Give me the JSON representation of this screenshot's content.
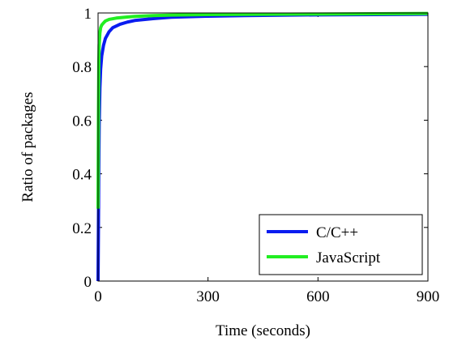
{
  "chart_data": {
    "type": "line",
    "title": "",
    "xlabel": "Time (seconds)",
    "ylabel": "Ratio of packages",
    "xlim": [
      0,
      900
    ],
    "ylim": [
      0,
      1
    ],
    "x_ticks": [
      0,
      300,
      600,
      900
    ],
    "y_ticks": [
      0,
      0.2,
      0.4,
      0.6,
      0.8,
      1
    ],
    "x_tick_labels": [
      "0",
      "300",
      "600",
      "900"
    ],
    "y_tick_labels": [
      "0",
      "0.2",
      "0.4",
      "0.6",
      "0.8",
      "1"
    ],
    "grid": false,
    "legend_position": "bottom-right",
    "series": [
      {
        "name": "C/C++",
        "color": "#0a1cf0",
        "x": [
          0,
          1,
          2,
          3,
          5,
          7,
          10,
          15,
          20,
          30,
          40,
          60,
          80,
          100,
          150,
          200,
          300,
          400,
          600,
          900
        ],
        "y": [
          0,
          0.2,
          0.42,
          0.58,
          0.72,
          0.79,
          0.84,
          0.88,
          0.905,
          0.93,
          0.945,
          0.958,
          0.966,
          0.972,
          0.979,
          0.984,
          0.988,
          0.99,
          0.993,
          0.995
        ]
      },
      {
        "name": "JavaScript",
        "color": "#22ee22",
        "x": [
          0,
          1,
          2,
          3,
          5,
          7,
          10,
          15,
          20,
          30,
          50,
          80,
          100,
          150,
          200,
          300,
          600,
          900
        ],
        "y": [
          0.27,
          0.6,
          0.8,
          0.88,
          0.925,
          0.945,
          0.955,
          0.963,
          0.97,
          0.976,
          0.981,
          0.985,
          0.987,
          0.99,
          0.992,
          0.994,
          0.996,
          0.998
        ]
      }
    ]
  }
}
